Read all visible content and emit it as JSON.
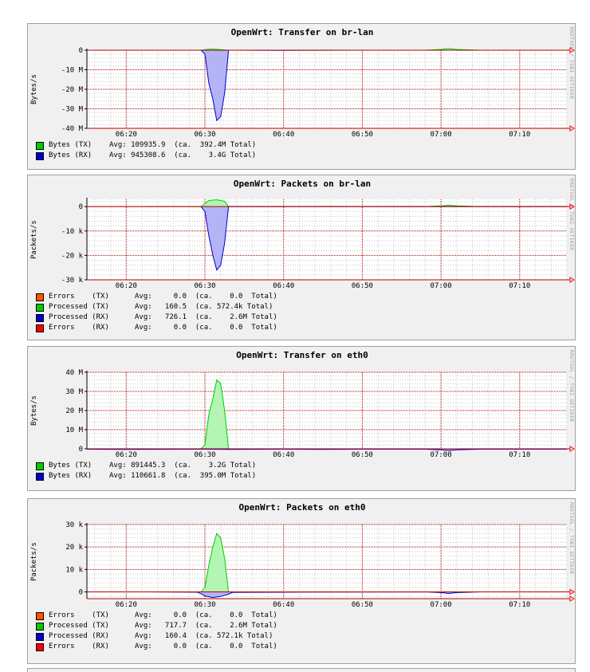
{
  "chart_data": [
    {
      "type": "area",
      "title": "OpenWrt: Transfer on br-lan",
      "ylabel": "Bytes/s",
      "vendor": "RRDTOOL / TOBI OETIKER",
      "x_ticks": [
        "06:20",
        "06:30",
        "06:40",
        "06:50",
        "07:00",
        "07:10"
      ],
      "xlim_minutes": [
        375,
        436
      ],
      "y_ticks": [
        {
          "value": 0,
          "label": "0"
        },
        {
          "value": -10000000,
          "label": "-10 M"
        },
        {
          "value": -20000000,
          "label": "-20 M"
        },
        {
          "value": -30000000,
          "label": "-30 M"
        },
        {
          "value": -40000000,
          "label": "-40 M"
        }
      ],
      "ylim": [
        -40000000,
        0
      ],
      "grid": true,
      "series": [
        {
          "name": "Bytes (TX)",
          "color": "#00cc00",
          "fill": "#b3f5b3",
          "x": [
            382.5,
            389.5,
            390,
            391,
            392,
            393,
            400,
            405,
            410,
            418,
            420,
            421,
            422,
            425,
            430,
            435,
            441
          ],
          "y": [
            0,
            0,
            300000,
            600000,
            300000,
            0,
            0,
            50000,
            0,
            0,
            400000,
            800000,
            400000,
            0,
            0,
            0,
            0
          ]
        },
        {
          "name": "Bytes (RX)",
          "color": "#0000cc",
          "fill": "#b3b3f5",
          "x": [
            389.5,
            390,
            390.5,
            391,
            391.5,
            392,
            392.5,
            393,
            394,
            400,
            410,
            441
          ],
          "y": [
            0,
            -2000000,
            -17000000,
            -25000000,
            -36000000,
            -34000000,
            -22000000,
            0,
            0,
            -100000,
            0,
            0
          ]
        }
      ],
      "legend": [
        {
          "label": "Bytes (TX)",
          "color": "#00cc00",
          "text": "Avg: 109935.9  (ca.  392.4M Total)"
        },
        {
          "label": "Bytes (RX)",
          "color": "#0000cc",
          "text": "Avg: 945308.6  (ca.    3.4G Total)"
        }
      ]
    },
    {
      "type": "area",
      "title": "OpenWrt: Packets on br-lan",
      "ylabel": "Packets/s",
      "vendor": "RRDTOOL / TOBI OETIKER",
      "x_ticks": [
        "06:20",
        "06:30",
        "06:40",
        "06:50",
        "07:00",
        "07:10"
      ],
      "xlim_minutes": [
        375,
        436
      ],
      "y_ticks": [
        {
          "value": 0,
          "label": "0"
        },
        {
          "value": -10000,
          "label": "-10 k"
        },
        {
          "value": -20000,
          "label": "-20 k"
        },
        {
          "value": -30000,
          "label": "-30 k"
        }
      ],
      "ylim": [
        -30000,
        3000
      ],
      "grid": true,
      "series": [
        {
          "name": "Processed (TX)",
          "color": "#00cc00",
          "fill": "#b3f5b3",
          "x": [
            382.5,
            389.5,
            390,
            390.5,
            391.5,
            392.5,
            393,
            400,
            405,
            418,
            420,
            421,
            422,
            425,
            435,
            441
          ],
          "y": [
            0,
            0,
            1200,
            2500,
            2800,
            2200,
            0,
            0,
            100,
            0,
            300,
            600,
            300,
            0,
            0,
            0
          ]
        },
        {
          "name": "Processed (RX)",
          "color": "#0000cc",
          "fill": "#b3b3f5",
          "x": [
            389.5,
            390,
            390.5,
            391,
            391.5,
            392,
            392.5,
            393,
            394,
            441
          ],
          "y": [
            0,
            -2000,
            -12000,
            -20000,
            -26000,
            -24000,
            -15000,
            0,
            0,
            0
          ]
        }
      ],
      "legend": [
        {
          "label": "Errors    (TX)",
          "color": "#ff5500",
          "text": "Avg:     0.0  (ca.    0.0  Total)"
        },
        {
          "label": "Processed (TX)",
          "color": "#00cc00",
          "text": "Avg:   160.5  (ca. 572.4k Total)"
        },
        {
          "label": "Processed (RX)",
          "color": "#0000cc",
          "text": "Avg:   726.1  (ca.    2.6M Total)"
        },
        {
          "label": "Errors    (RX)",
          "color": "#ff0000",
          "text": "Avg:     0.0  (ca.    0.0  Total)"
        }
      ]
    },
    {
      "type": "area",
      "title": "OpenWrt: Transfer on eth0",
      "ylabel": "Bytes/s",
      "vendor": "RRDTOOL / TOBI OETIKER",
      "x_ticks": [
        "06:20",
        "06:30",
        "06:40",
        "06:50",
        "07:00",
        "07:10"
      ],
      "xlim_minutes": [
        375,
        436
      ],
      "y_ticks": [
        {
          "value": 0,
          "label": "0"
        },
        {
          "value": 10000000,
          "label": "10 M"
        },
        {
          "value": 20000000,
          "label": "20 M"
        },
        {
          "value": 30000000,
          "label": "30 M"
        },
        {
          "value": 40000000,
          "label": "40 M"
        }
      ],
      "ylim": [
        0,
        40000000
      ],
      "grid": true,
      "series": [
        {
          "name": "Bytes (TX)",
          "color": "#00cc00",
          "fill": "#b3f5b3",
          "x": [
            389.5,
            390,
            390.5,
            391,
            391.5,
            392,
            392.5,
            393,
            394,
            441
          ],
          "y": [
            0,
            2000000,
            18000000,
            26000000,
            36000000,
            34000000,
            20000000,
            0,
            0,
            0
          ]
        },
        {
          "name": "Bytes (RX)",
          "color": "#0000cc",
          "fill": "#b3b3f5",
          "x": [
            375,
            380,
            389.5,
            393,
            400,
            405,
            410,
            418,
            420,
            421,
            422,
            425,
            430,
            435,
            441
          ],
          "y": [
            -200000,
            -300000,
            -200000,
            -300000,
            -200000,
            -300000,
            -200000,
            -200000,
            -500000,
            -900000,
            -500000,
            -200000,
            -200000,
            -200000,
            -200000
          ]
        }
      ],
      "legend": [
        {
          "label": "Bytes (TX)",
          "color": "#00cc00",
          "text": "Avg: 891445.3  (ca.    3.2G Total)"
        },
        {
          "label": "Bytes (RX)",
          "color": "#0000cc",
          "text": "Avg: 110661.8  (ca.  395.0M Total)"
        }
      ]
    },
    {
      "type": "area",
      "title": "OpenWrt: Packets on eth0",
      "ylabel": "Packets/s",
      "vendor": "RRDTOOL / TOBI OETIKER",
      "x_ticks": [
        "06:20",
        "06:30",
        "06:40",
        "06:50",
        "07:00",
        "07:10"
      ],
      "xlim_minutes": [
        375,
        436
      ],
      "y_ticks": [
        {
          "value": 0,
          "label": "0"
        },
        {
          "value": 10000,
          "label": "10 k"
        },
        {
          "value": 20000,
          "label": "20 k"
        },
        {
          "value": 30000,
          "label": "30 k"
        }
      ],
      "ylim": [
        -3000,
        30000
      ],
      "grid": true,
      "series": [
        {
          "name": "Processed (TX)",
          "color": "#00cc00",
          "fill": "#b3f5b3",
          "x": [
            389.5,
            390,
            390.5,
            391,
            391.5,
            392,
            392.5,
            393,
            394,
            441
          ],
          "y": [
            0,
            2000,
            12000,
            20000,
            26000,
            24000,
            15000,
            0,
            0,
            0
          ]
        },
        {
          "name": "Processed (RX)",
          "color": "#0000cc",
          "fill": "#b3b3f5",
          "x": [
            382.5,
            389,
            389.5,
            390,
            391,
            392,
            393,
            393.5,
            400,
            418,
            420,
            421,
            422,
            425,
            435,
            441
          ],
          "y": [
            0,
            -100,
            -800,
            -1800,
            -2500,
            -2000,
            -1000,
            -200,
            -100,
            0,
            -300,
            -700,
            -300,
            0,
            0,
            0
          ]
        }
      ],
      "legend": [
        {
          "label": "Errors    (TX)",
          "color": "#ff5500",
          "text": "Avg:     0.0  (ca.    0.0  Total)"
        },
        {
          "label": "Processed (TX)",
          "color": "#00cc00",
          "text": "Avg:   717.7  (ca.    2.6M Total)"
        },
        {
          "label": "Processed (RX)",
          "color": "#0000cc",
          "text": "Avg:   160.4  (ca. 572.1k Total)"
        },
        {
          "label": "Errors    (RX)",
          "color": "#ff0000",
          "text": "Avg:     0.0  (ca.    0.0  Total)"
        }
      ]
    }
  ]
}
